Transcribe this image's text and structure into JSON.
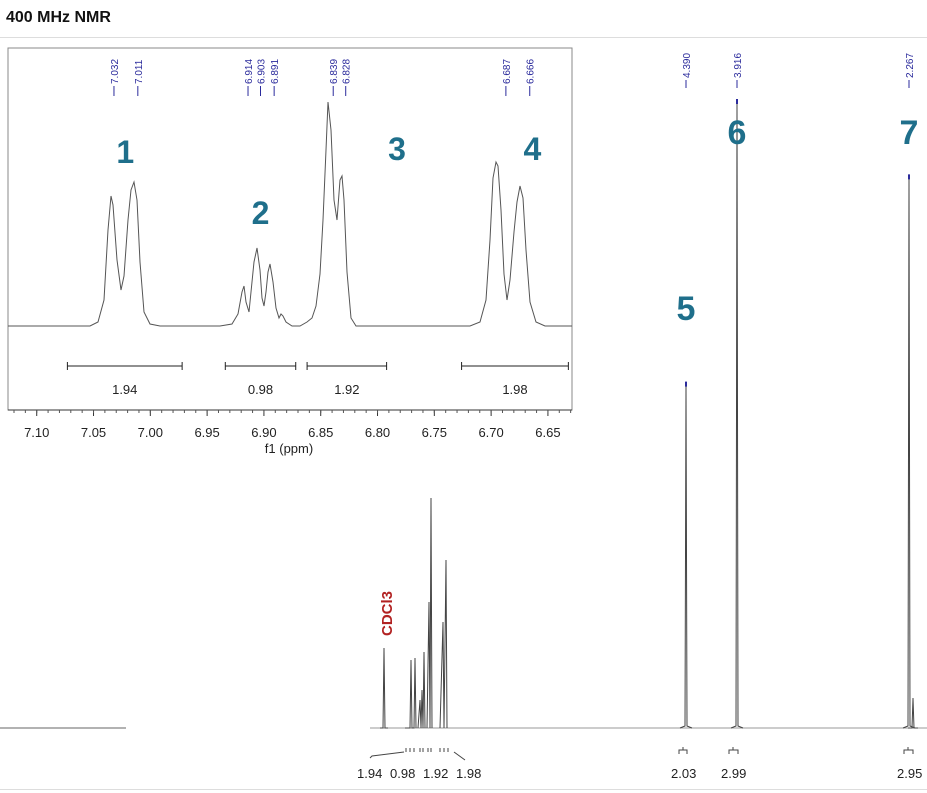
{
  "title": "400 MHz NMR",
  "solvent": "CDCl3",
  "colors": {
    "peak_label": "#1f6f8b",
    "solvent": "#b22222",
    "pick": "#2b2b9c",
    "trace": "#555555"
  },
  "chart_data": {
    "type": "line",
    "title": "400 MHz NMR",
    "main": {
      "peak_picks": [
        "4.390",
        "3.916",
        "2.267"
      ],
      "peaks": [
        {
          "label": "5",
          "shift": 4.39,
          "height": 0.55
        },
        {
          "label": "6",
          "shift": 3.916,
          "height": 1.0
        },
        {
          "label": "7",
          "shift": 2.267,
          "height": 0.88
        }
      ],
      "integrals": [
        "1.94",
        "0.98",
        "1.92",
        "1.98",
        "2.03",
        "2.99",
        "2.95"
      ]
    },
    "inset": {
      "xlabel": "f1 (ppm)",
      "xlim": [
        7.12,
        6.62
      ],
      "ticks": [
        "7.10",
        "7.05",
        "7.00",
        "6.95",
        "6.90",
        "6.85",
        "6.80",
        "6.75",
        "6.70",
        "6.65"
      ],
      "peak_picks": [
        "7.032",
        "7.011",
        "6.914",
        "6.903",
        "6.891",
        "6.839",
        "6.828",
        "6.687",
        "6.666"
      ],
      "group_labels": [
        {
          "label": "1",
          "shift": 7.022
        },
        {
          "label": "2",
          "shift": 6.903
        },
        {
          "label": "3",
          "shift": 6.818
        },
        {
          "label": "4",
          "shift": 6.676
        }
      ],
      "integrals": [
        {
          "value": "1.94",
          "from": 7.073,
          "to": 6.972
        },
        {
          "value": "0.98",
          "from": 6.934,
          "to": 6.872
        },
        {
          "value": "1.92",
          "from": 6.862,
          "to": 6.792
        },
        {
          "value": "1.98",
          "from": 6.726,
          "to": 6.632
        }
      ]
    }
  }
}
